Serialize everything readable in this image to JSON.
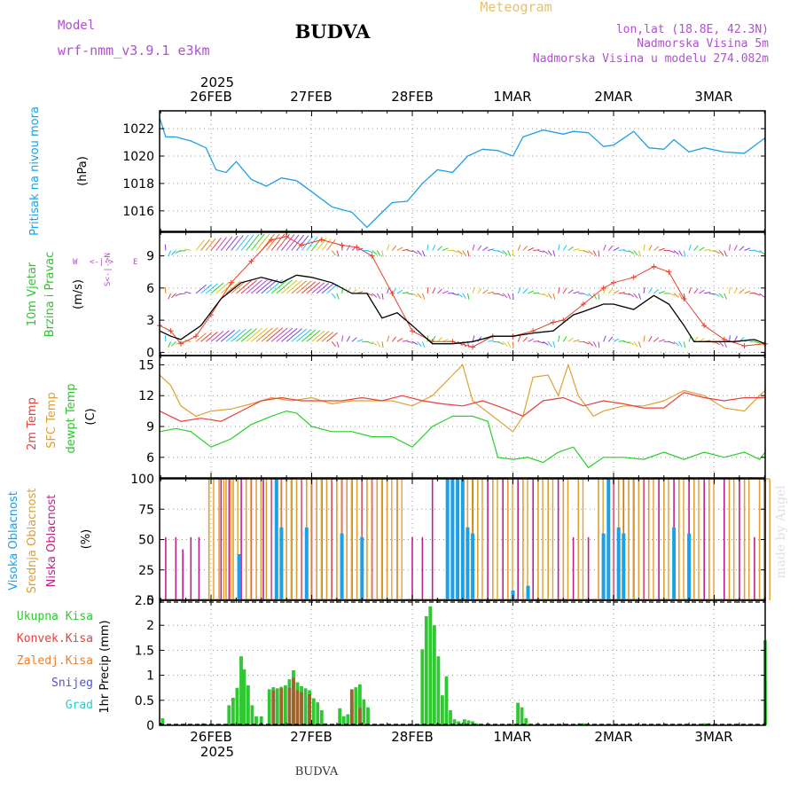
{
  "header": {
    "model_label": "Model",
    "model_name": "wrf-nmm_v3.9.1 e3km",
    "meteogram_label": "Meteogram",
    "station_title": "BUDVA",
    "coords": "lon,lat (18.8E, 42.3N)",
    "altitude": "Nadmorska Visina 5m",
    "model_altitude": "Nadmorska Visina u modelu 274.082m",
    "watermark": "made by Angel",
    "footer_station": "BUDVA"
  },
  "time_axis": {
    "year": "2025",
    "labels": [
      "26FEB",
      "27FEB",
      "28FEB",
      "1MAR",
      "2MAR",
      "3MAR"
    ],
    "x_range_days": [
      0,
      6
    ]
  },
  "colors": {
    "pressure": "#1ea0e6",
    "wind": "#000000",
    "gust": "#e8402c",
    "temp2m": "#e8403c",
    "sfc": "#e0a030",
    "dewpt": "#28d028",
    "high_cloud": "#1ea0e6",
    "mid_cloud": "#e0a030",
    "low_cloud": "#c0228c",
    "rain": "#30c830",
    "convective": "#e84040",
    "freezing": "#e88030",
    "snow": "#5050d8",
    "hail": "#30c8c8",
    "ylabel_violet": "#b050d0"
  },
  "chart_data": [
    {
      "type": "line",
      "name": "pressure",
      "label": "Pritisak na nivou mora",
      "ylabel": "(hPa)",
      "ylim": [
        1014.5,
        1023.3
      ],
      "ticks": [
        "1016",
        "1018",
        "1020",
        "1022"
      ],
      "x": [
        -0.52,
        -0.45,
        -0.35,
        -0.2,
        -0.05,
        0.05,
        0.15,
        0.25,
        0.4,
        0.55,
        0.7,
        0.85,
        1.0,
        1.2,
        1.4,
        1.55,
        1.7,
        1.8,
        1.95,
        2.1,
        2.25,
        2.4,
        2.55,
        2.7,
        2.85,
        3.0,
        3.1,
        3.3,
        3.5,
        3.6,
        3.75,
        3.9,
        4.0,
        4.2,
        4.35,
        4.5,
        4.6,
        4.75,
        4.9,
        5.1,
        5.3,
        5.5,
        5.65
      ],
      "values": [
        1022.8,
        1021.4,
        1021.4,
        1021.1,
        1020.6,
        1019.0,
        1018.8,
        1019.6,
        1018.3,
        1017.8,
        1018.4,
        1018.2,
        1017.4,
        1016.3,
        1015.9,
        1014.8,
        1015.9,
        1016.6,
        1016.7,
        1018.0,
        1019.0,
        1018.8,
        1020.0,
        1020.5,
        1020.4,
        1020.0,
        1021.4,
        1021.9,
        1021.6,
        1021.8,
        1021.7,
        1020.7,
        1020.8,
        1021.8,
        1020.6,
        1020.5,
        1021.2,
        1020.3,
        1020.6,
        1020.3,
        1020.2,
        1021.3,
        1021.0
      ]
    },
    {
      "type": "line",
      "name": "wind",
      "label": "10m Vjetar Brzina i Pravac",
      "ylabel": "(m/s)",
      "ylim": [
        -0.3,
        11.2
      ],
      "ticks": [
        "0",
        "3",
        "6",
        "9"
      ],
      "compass": "N S W E",
      "series": [
        {
          "name": "speed",
          "x": [
            -0.52,
            -0.4,
            -0.3,
            -0.1,
            0.1,
            0.3,
            0.5,
            0.7,
            0.85,
            1.0,
            1.2,
            1.4,
            1.55,
            1.7,
            1.85,
            2.0,
            2.2,
            2.4,
            2.6,
            2.8,
            3.0,
            3.2,
            3.4,
            3.6,
            3.7,
            3.9,
            4.0,
            4.2,
            4.4,
            4.55,
            4.7,
            4.8,
            5.0,
            5.2,
            5.4,
            5.65
          ],
          "values": [
            2.0,
            1.5,
            1.2,
            2.5,
            5.0,
            6.5,
            7.0,
            6.5,
            7.2,
            7.0,
            6.5,
            5.5,
            5.5,
            3.2,
            3.7,
            2.5,
            0.8,
            0.8,
            1.0,
            1.5,
            1.5,
            1.8,
            2.0,
            3.5,
            3.8,
            4.5,
            4.5,
            4.0,
            5.3,
            4.5,
            2.5,
            1.0,
            1.0,
            1.0,
            1.2,
            0.8
          ]
        },
        {
          "name": "gust",
          "x": [
            -0.52,
            -0.4,
            -0.3,
            -0.15,
            0.0,
            0.2,
            0.4,
            0.6,
            0.75,
            0.9,
            1.1,
            1.3,
            1.45,
            1.6,
            1.8,
            2.0,
            2.2,
            2.4,
            2.6,
            2.8,
            3.0,
            3.2,
            3.4,
            3.5,
            3.7,
            3.9,
            4.0,
            4.2,
            4.4,
            4.55,
            4.7,
            4.9,
            5.1,
            5.3,
            5.5,
            5.65
          ],
          "values": [
            2.5,
            2.0,
            0.8,
            1.5,
            3.5,
            6.5,
            8.5,
            10.5,
            10.8,
            10.0,
            10.5,
            10.0,
            9.8,
            9.0,
            5.5,
            2.0,
            1.0,
            1.0,
            0.5,
            1.5,
            1.5,
            2.0,
            2.8,
            3.0,
            4.5,
            6.0,
            6.5,
            7.0,
            8.0,
            7.5,
            5.0,
            2.5,
            1.2,
            0.6,
            0.8,
            0.8
          ]
        }
      ]
    },
    {
      "type": "line",
      "name": "temperature",
      "labels": [
        "2m Temp",
        "SFC Temp",
        "dewpt Temp"
      ],
      "ylabel": "(C)",
      "ylim": [
        4.0,
        15.9
      ],
      "ticks": [
        "6",
        "9",
        "12",
        "15"
      ],
      "series": [
        {
          "name": "2m Temp",
          "x": [
            -0.52,
            -0.3,
            -0.1,
            0.1,
            0.3,
            0.5,
            0.7,
            0.9,
            1.1,
            1.3,
            1.5,
            1.7,
            1.9,
            2.1,
            2.3,
            2.5,
            2.7,
            2.9,
            3.1,
            3.3,
            3.5,
            3.7,
            3.9,
            4.1,
            4.3,
            4.5,
            4.7,
            4.9,
            5.1,
            5.3,
            5.5,
            5.65
          ],
          "values": [
            10.5,
            9.5,
            9.8,
            9.5,
            10.5,
            11.5,
            11.8,
            11.5,
            11.5,
            11.5,
            11.8,
            11.5,
            12.0,
            11.5,
            11.2,
            11.0,
            11.5,
            10.8,
            10.0,
            11.5,
            11.8,
            11.0,
            11.5,
            11.2,
            10.8,
            10.8,
            12.3,
            11.8,
            11.5,
            11.8,
            11.8,
            11.8
          ]
        },
        {
          "name": "SFC Temp",
          "x": [
            -0.52,
            -0.4,
            -0.3,
            -0.15,
            0.0,
            0.2,
            0.4,
            0.6,
            0.8,
            1.0,
            1.2,
            1.4,
            1.6,
            1.8,
            2.0,
            2.2,
            2.4,
            2.5,
            2.6,
            2.8,
            3.0,
            3.1,
            3.2,
            3.35,
            3.45,
            3.55,
            3.65,
            3.8,
            3.9,
            4.1,
            4.3,
            4.5,
            4.7,
            4.9,
            5.1,
            5.3,
            5.45,
            5.55,
            5.65
          ],
          "values": [
            14.0,
            13.0,
            11.0,
            10.0,
            10.5,
            10.7,
            11.2,
            11.8,
            11.5,
            11.8,
            11.2,
            11.5,
            11.5,
            11.5,
            11.0,
            12.0,
            14.0,
            15.0,
            11.5,
            10.0,
            8.5,
            10.0,
            13.8,
            14.0,
            12.0,
            15.0,
            12.0,
            10.0,
            10.5,
            11.0,
            11.0,
            11.5,
            12.5,
            12.0,
            10.8,
            10.5,
            12.0,
            12.5,
            12.8
          ]
        },
        {
          "name": "dewpt Temp",
          "x": [
            -0.52,
            -0.35,
            -0.2,
            0.0,
            0.2,
            0.4,
            0.6,
            0.75,
            0.85,
            1.0,
            1.2,
            1.4,
            1.6,
            1.8,
            2.0,
            2.2,
            2.4,
            2.6,
            2.75,
            2.85,
            3.0,
            3.15,
            3.3,
            3.45,
            3.6,
            3.75,
            3.9,
            4.1,
            4.3,
            4.5,
            4.7,
            4.9,
            5.1,
            5.3,
            5.45,
            5.55,
            5.65
          ],
          "values": [
            8.5,
            8.8,
            8.5,
            7.0,
            7.8,
            9.2,
            10.0,
            10.5,
            10.3,
            9.0,
            8.5,
            8.5,
            8.0,
            8.0,
            7.0,
            9.0,
            10.0,
            10.0,
            9.5,
            6.0,
            5.8,
            6.0,
            5.5,
            6.5,
            7.0,
            5.0,
            6.0,
            6.0,
            5.8,
            6.5,
            5.8,
            6.5,
            6.0,
            6.5,
            5.8,
            6.5,
            7.0
          ]
        }
      ]
    },
    {
      "type": "bar",
      "name": "clouds",
      "labels": [
        "Visoka Oblacnost",
        "Srednja Oblacnost",
        "Niska Oblacnost"
      ],
      "ylabel": "(%)",
      "ylim": [
        0,
        100
      ],
      "ticks": [
        "0",
        "25",
        "50",
        "75",
        "100"
      ],
      "series": [
        {
          "name": "Niska Oblacnost",
          "x": [
            -0.45,
            -0.35,
            -0.28,
            -0.2,
            -0.12,
            0.1,
            0.18,
            0.3,
            0.4,
            0.52,
            0.6,
            0.7,
            0.8,
            0.9,
            1.0,
            1.1,
            1.2,
            1.3,
            1.4,
            1.5,
            1.6,
            1.7,
            1.85,
            2.0,
            2.1,
            2.2,
            2.35,
            2.5,
            2.6,
            2.75,
            2.9,
            3.05,
            3.2,
            3.45,
            3.6,
            3.75,
            4.0,
            4.1,
            4.2,
            4.3,
            4.45,
            4.6,
            4.75,
            4.9,
            5.1,
            5.25,
            5.4
          ],
          "values": [
            52,
            52,
            42,
            52,
            52,
            100,
            100,
            100,
            100,
            100,
            100,
            100,
            100,
            100,
            100,
            100,
            100,
            100,
            100,
            100,
            100,
            100,
            100,
            52,
            52,
            100,
            52,
            100,
            100,
            100,
            100,
            100,
            100,
            100,
            52,
            52,
            100,
            100,
            100,
            100,
            100,
            100,
            100,
            100,
            100,
            100,
            52
          ]
        },
        {
          "name": "Srednja Oblacnost",
          "x": [
            -0.02,
            0.08,
            0.15,
            0.22,
            0.35,
            0.45,
            0.55,
            0.65,
            0.75,
            0.85,
            0.95,
            1.05,
            1.15,
            1.25,
            1.35,
            1.45,
            1.55,
            1.65,
            1.75,
            1.85,
            2.35,
            2.45,
            2.55,
            2.65,
            2.8,
            2.95,
            3.1,
            3.25,
            3.35,
            3.5,
            3.65,
            3.85,
            3.95,
            4.05,
            4.15,
            4.25,
            4.35,
            4.5,
            4.65,
            4.8,
            4.95,
            5.15,
            5.3,
            5.45,
            5.55
          ],
          "values": [
            100,
            100,
            100,
            100,
            100,
            100,
            100,
            100,
            100,
            100,
            100,
            100,
            100,
            100,
            100,
            100,
            100,
            100,
            100,
            100,
            100,
            100,
            100,
            100,
            100,
            100,
            100,
            100,
            100,
            100,
            100,
            100,
            100,
            100,
            100,
            100,
            100,
            100,
            100,
            100,
            100,
            100,
            100,
            100,
            100
          ]
        },
        {
          "name": "Visoka Oblacnost",
          "x": [
            0.28,
            0.65,
            0.7,
            0.95,
            1.3,
            1.5,
            2.35,
            2.4,
            2.45,
            2.5,
            2.55,
            2.6,
            3.0,
            3.15,
            3.9,
            3.95,
            4.05,
            4.1,
            4.6,
            4.75
          ],
          "values": [
            38,
            100,
            60,
            60,
            55,
            52,
            100,
            100,
            100,
            100,
            60,
            55,
            8,
            12,
            55,
            100,
            60,
            55,
            60,
            55
          ]
        }
      ]
    },
    {
      "type": "bar",
      "name": "precipitation",
      "labels": [
        "Ukupna Kisa",
        "Konvek.Kisa",
        "Zaledj.Kisa",
        "Snijeg",
        "Grad"
      ],
      "ylabel": "1hr Precip (mm)",
      "ylim": [
        0,
        2.5
      ],
      "ticks": [
        "0",
        "0.5",
        "1",
        "1.5",
        "2",
        "2.5"
      ],
      "series": [
        {
          "name": "Ukupna Kisa",
          "x": [
            -0.48,
            -0.08,
            0.18,
            0.22,
            0.26,
            0.3,
            0.33,
            0.37,
            0.41,
            0.45,
            0.5,
            0.58,
            0.62,
            0.66,
            0.7,
            0.74,
            0.78,
            0.82,
            0.86,
            0.9,
            0.94,
            0.98,
            1.02,
            1.06,
            1.1,
            1.14,
            1.28,
            1.32,
            1.36,
            1.4,
            1.44,
            1.48,
            1.52,
            1.56,
            2.1,
            2.14,
            2.18,
            2.22,
            2.26,
            2.3,
            2.34,
            2.38,
            2.42,
            2.46,
            2.52,
            2.56,
            2.6,
            2.64,
            3.05,
            3.09,
            3.13,
            3.66,
            3.7,
            4.9,
            4.95,
            5.55,
            5.59,
            5.63,
            5.66
          ],
          "values": [
            0.14,
            0.04,
            0.4,
            0.55,
            0.75,
            1.38,
            1.12,
            0.8,
            0.4,
            0.18,
            0.18,
            0.72,
            0.76,
            0.74,
            0.77,
            0.8,
            0.92,
            1.1,
            0.86,
            0.78,
            0.74,
            0.7,
            0.54,
            0.46,
            0.3,
            0.04,
            0.34,
            0.18,
            0.22,
            0.45,
            0.76,
            0.82,
            0.52,
            0.36,
            1.52,
            2.18,
            2.38,
            2.0,
            1.38,
            0.6,
            0.98,
            0.3,
            0.12,
            0.08,
            0.12,
            0.1,
            0.08,
            0.04,
            0.45,
            0.36,
            0.14,
            0.04,
            0.04,
            0.04,
            0.04,
            0.3,
            0.52,
            0.9,
            1.7
          ]
        },
        {
          "name": "Konvek.Kisa",
          "x": [
            0.62,
            0.7,
            0.78,
            0.82,
            0.86,
            0.9,
            0.98,
            1.4,
            1.48
          ],
          "values": [
            0.7,
            0.74,
            0.75,
            0.95,
            0.7,
            0.66,
            0.62,
            0.72,
            0.35
          ]
        },
        {
          "name": "Zaledj.Kisa",
          "x": [],
          "values": []
        },
        {
          "name": "Snijeg",
          "x": [],
          "values": []
        },
        {
          "name": "Grad",
          "x": [],
          "values": []
        }
      ]
    }
  ]
}
